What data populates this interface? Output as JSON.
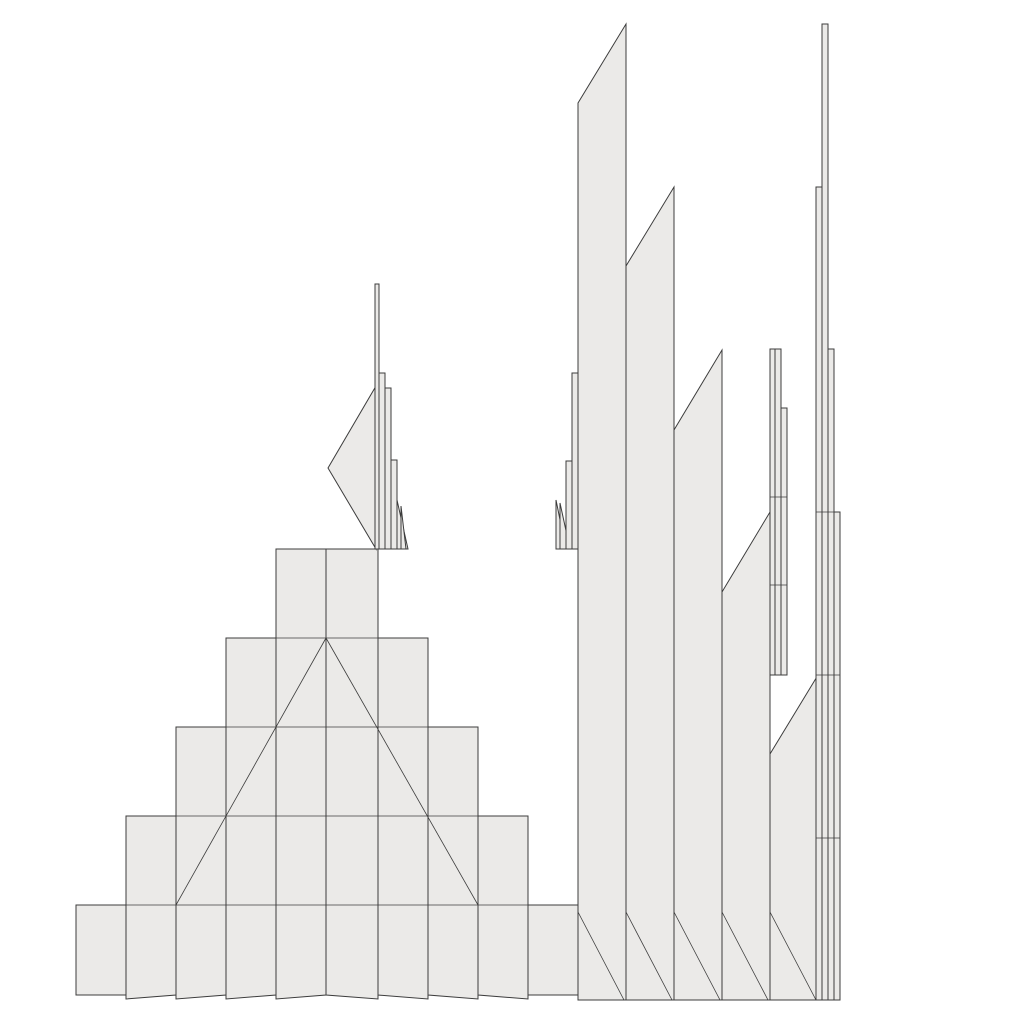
{
  "scene": {
    "background": "#ffffff",
    "face_fill": "#ebeae8",
    "edge_color": "#3c3c3c"
  }
}
